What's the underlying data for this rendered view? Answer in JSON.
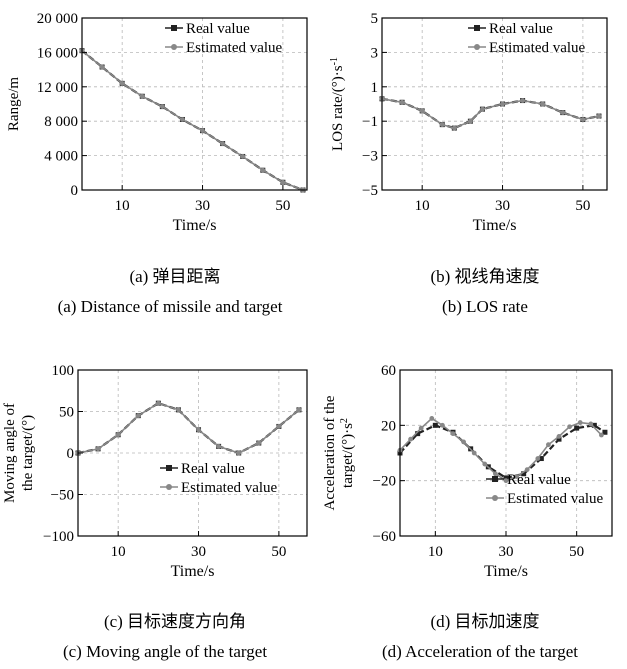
{
  "figure": {
    "captions": [
      {
        "cn": "(a) 弹目距离",
        "en": "(a) Distance of missile and target"
      },
      {
        "cn": "(b) 视线角速度",
        "en": "(b) LOS rate"
      },
      {
        "cn": "(c) 目标速度方向角",
        "en": "(c) Moving angle of the target"
      },
      {
        "cn": "(d) 目标加速度",
        "en": "(d) Acceleration of the target"
      }
    ]
  },
  "chart_data": [
    {
      "type": "line",
      "xlabel": "Time/s",
      "ylabel": "Range/m",
      "xlim": [
        0,
        56
      ],
      "ylim": [
        0,
        20000
      ],
      "xticks": [
        10,
        30,
        50
      ],
      "xticklabels": [
        "10",
        "30",
        "50"
      ],
      "yticks": [
        0,
        4000,
        8000,
        12000,
        16000,
        20000
      ],
      "yticklabels": [
        "0",
        "4 000",
        "8 000",
        "12 000",
        "16 000",
        "20 000"
      ],
      "grid": true,
      "legend_position": "top-right",
      "series": [
        {
          "name": "Real value",
          "marker": "square",
          "color": "#222222",
          "x": [
            0,
            5,
            10,
            15,
            20,
            25,
            30,
            35,
            40,
            45,
            50,
            55
          ],
          "y": [
            16200,
            14300,
            12400,
            10900,
            9700,
            8200,
            6900,
            5400,
            3900,
            2300,
            900,
            0
          ]
        },
        {
          "name": "Estimated value",
          "marker": "circle",
          "color": "#888888",
          "x": [
            0,
            5,
            10,
            15,
            20,
            25,
            30,
            35,
            40,
            45,
            50,
            55
          ],
          "y": [
            16200,
            14300,
            12400,
            10900,
            9700,
            8200,
            6900,
            5400,
            3900,
            2300,
            900,
            0
          ]
        }
      ]
    },
    {
      "type": "line",
      "xlabel": "Time/s",
      "ylabel": "LOS rate/(°)·s⁻¹",
      "xlim": [
        0,
        56
      ],
      "ylim": [
        -5,
        5
      ],
      "xticks": [
        10,
        30,
        50
      ],
      "xticklabels": [
        "10",
        "30",
        "50"
      ],
      "yticks": [
        -5,
        -3,
        -1,
        1,
        3,
        5
      ],
      "yticklabels": [
        "−5",
        "−3",
        "−1",
        "1",
        "3",
        "5"
      ],
      "grid": true,
      "legend_position": "top-right",
      "series": [
        {
          "name": "Real value",
          "marker": "square",
          "color": "#222222",
          "x": [
            0,
            5,
            10,
            15,
            18,
            22,
            25,
            30,
            35,
            40,
            45,
            50,
            54
          ],
          "y": [
            0.3,
            0.1,
            -0.4,
            -1.2,
            -1.4,
            -1.0,
            -0.3,
            0.0,
            0.2,
            0.0,
            -0.5,
            -0.9,
            -0.7
          ]
        },
        {
          "name": "Estimated value",
          "marker": "circle",
          "color": "#888888",
          "x": [
            0,
            5,
            10,
            15,
            18,
            22,
            25,
            30,
            35,
            40,
            45,
            50,
            54
          ],
          "y": [
            0.3,
            0.1,
            -0.4,
            -1.2,
            -1.4,
            -1.0,
            -0.3,
            0.0,
            0.2,
            0.0,
            -0.5,
            -0.9,
            -0.7
          ]
        }
      ]
    },
    {
      "type": "line",
      "xlabel": "Time/s",
      "ylabel": "Moving angle of the target/(°)",
      "xlim": [
        0,
        57
      ],
      "ylim": [
        -100,
        100
      ],
      "xticks": [
        10,
        30,
        50
      ],
      "xticklabels": [
        "10",
        "30",
        "50"
      ],
      "yticks": [
        -100,
        -50,
        0,
        50,
        100
      ],
      "yticklabels": [
        "−100",
        "−50",
        "0",
        "50",
        "100"
      ],
      "grid": true,
      "legend_position": "bottom-right",
      "series": [
        {
          "name": "Real value",
          "marker": "square",
          "color": "#222222",
          "x": [
            0,
            5,
            10,
            15,
            20,
            25,
            30,
            35,
            40,
            45,
            50,
            55
          ],
          "y": [
            0,
            5,
            22,
            45,
            60,
            52,
            28,
            8,
            0,
            12,
            32,
            52
          ]
        },
        {
          "name": "Estimated value",
          "marker": "circle",
          "color": "#888888",
          "x": [
            0,
            5,
            10,
            15,
            20,
            25,
            30,
            35,
            40,
            45,
            50,
            55
          ],
          "y": [
            0,
            5,
            22,
            45,
            60,
            52,
            28,
            8,
            0,
            12,
            32,
            52
          ]
        }
      ]
    },
    {
      "type": "line",
      "xlabel": "Time/s",
      "ylabel": "Acceleration of the target/(°)·s⁻²",
      "xlim": [
        0,
        60
      ],
      "ylim": [
        -60,
        60
      ],
      "xticks": [
        10,
        30,
        50
      ],
      "xticklabels": [
        "10",
        "30",
        "50"
      ],
      "yticks": [
        -60,
        -20,
        20,
        60
      ],
      "yticklabels": [
        "−60",
        "−20",
        "20",
        "60"
      ],
      "grid": true,
      "legend_position": "bottom-right",
      "series": [
        {
          "name": "Real value",
          "marker": "square",
          "color": "#222222",
          "x": [
            0,
            5,
            10,
            15,
            20,
            25,
            30,
            35,
            40,
            45,
            50,
            55,
            58
          ],
          "y": [
            0,
            14,
            20,
            15,
            3,
            -10,
            -18,
            -15,
            -4,
            10,
            18,
            20,
            15
          ]
        },
        {
          "name": "Estimated value",
          "marker": "circle",
          "color": "#888888",
          "x": [
            0,
            3,
            6,
            9,
            12,
            15,
            18,
            21,
            24,
            27,
            30,
            33,
            36,
            39,
            42,
            45,
            48,
            51,
            54,
            57
          ],
          "y": [
            2,
            10,
            18,
            25,
            20,
            14,
            8,
            0,
            -8,
            -15,
            -20,
            -17,
            -12,
            -4,
            6,
            12,
            19,
            22,
            21,
            13
          ]
        }
      ]
    }
  ]
}
